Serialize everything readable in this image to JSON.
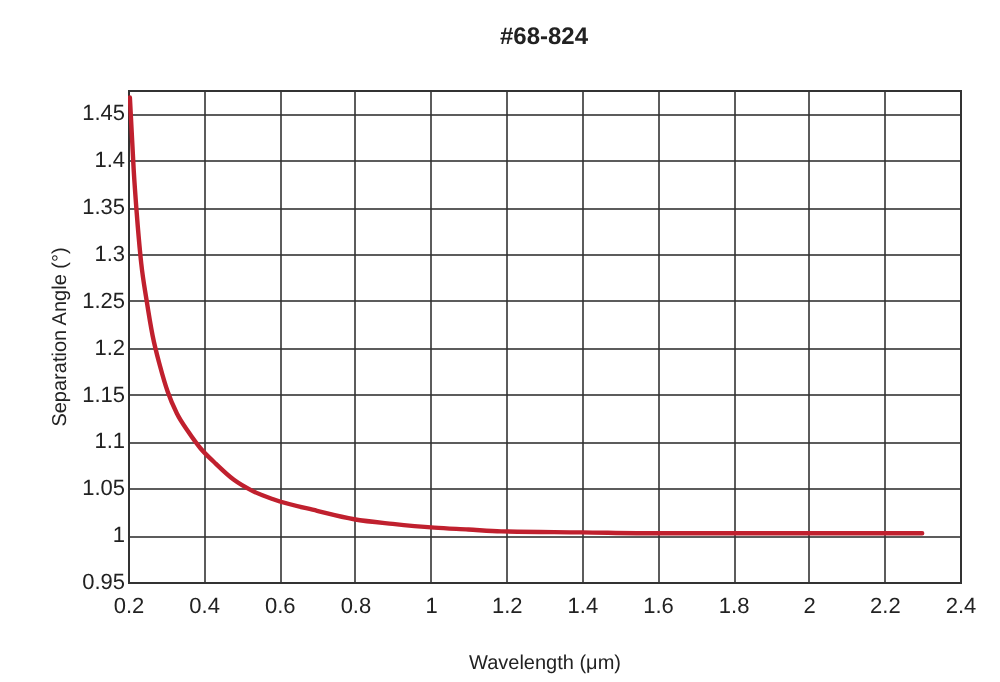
{
  "chart_data": {
    "type": "line",
    "title": "#68-824",
    "xlabel": "Wavelength (μm)",
    "ylabel": "Separation Angle (°)",
    "series": [
      {
        "color": "#c0202e",
        "x": [
          0.205,
          0.215,
          0.223,
          0.235,
          0.249,
          0.265,
          0.285,
          0.305,
          0.329,
          0.36,
          0.391,
          0.43,
          0.48,
          0.53,
          0.586,
          0.7,
          0.798,
          0.9,
          1.01,
          1.1,
          1.187,
          1.4,
          1.6,
          1.8,
          2.0,
          2.2,
          2.3
        ],
        "values": [
          1.467,
          1.39,
          1.344,
          1.29,
          1.251,
          1.213,
          1.18,
          1.153,
          1.13,
          1.11,
          1.093,
          1.077,
          1.059,
          1.047,
          1.038,
          1.026,
          1.017,
          1.012,
          1.008,
          1.006,
          1.004,
          1.003,
          1.002,
          1.002,
          1.002,
          1.002,
          1.002
        ]
      }
    ],
    "xlim": [
      0.2,
      2.4
    ],
    "xticks": [
      0.2,
      0.4,
      0.6,
      0.8,
      1,
      1.2,
      1.4,
      1.6,
      1.8,
      2,
      2.2,
      2.4
    ],
    "ylim": [
      0.95,
      1.475
    ],
    "yticks": [
      0.95,
      1,
      1.05,
      1.1,
      1.15,
      1.2,
      1.25,
      1.3,
      1.35,
      1.4,
      1.45
    ],
    "grid": true,
    "legend": false,
    "marker": "none",
    "line_style": "solid"
  }
}
